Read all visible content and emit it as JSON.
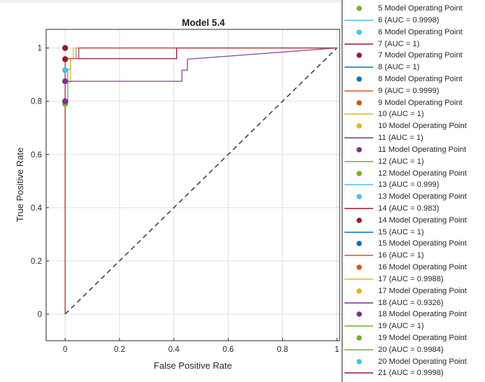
{
  "chart_data": {
    "type": "line",
    "title": "Model 5.4",
    "xlabel": "False Positive Rate",
    "ylabel": "True Positive Rate",
    "xlim": [
      -0.07,
      1.01
    ],
    "ylim": [
      -0.1,
      1.07
    ],
    "xticks": [
      0,
      0.2,
      0.4,
      0.6,
      0.8,
      1
    ],
    "xtick_labels": [
      "0",
      "0.2",
      "0.4",
      "0.6",
      "0.8",
      "1"
    ],
    "yticks": [
      0,
      0.2,
      0.4,
      0.6,
      0.8,
      1
    ],
    "ytick_labels": [
      "0",
      "0.2",
      "0.4",
      "0.6",
      "0.8",
      "1"
    ],
    "grid": true,
    "legend_position": "outside-right",
    "diagonal": {
      "x": [
        0,
        1
      ],
      "y": [
        0,
        1
      ],
      "style": "dashed",
      "color": "#404040"
    },
    "series": [
      {
        "color": "#7aa1c6",
        "x": [
          0,
          0,
          0.01,
          0.01,
          0.02,
          0.02,
          0.04,
          0.04,
          1
        ],
        "y": [
          0,
          0.79,
          0.79,
          0.92,
          0.92,
          0.96,
          0.96,
          1,
          1
        ]
      },
      {
        "color": "#e8c032",
        "x": [
          0,
          0,
          0.02,
          0.02,
          0.03,
          0.03,
          0.45,
          0.45,
          1
        ],
        "y": [
          0,
          0.87,
          0.87,
          0.96,
          0.96,
          1,
          1,
          1,
          1
        ]
      },
      {
        "color": "#8f4fa8",
        "x": [
          0,
          0,
          0.43,
          0.43,
          0.45,
          0.45,
          1
        ],
        "y": [
          0,
          0.875,
          0.875,
          0.917,
          0.917,
          0.958,
          1
        ]
      },
      {
        "color": "#a02040",
        "x": [
          0,
          0,
          0.41,
          0.41,
          1
        ],
        "y": [
          0,
          0.96,
          0.96,
          1,
          1
        ]
      },
      {
        "color": "#c04a4a",
        "x": [
          0,
          0,
          0.02,
          0.02,
          0.05,
          0.05,
          1
        ],
        "y": [
          0,
          0.96,
          0.96,
          0.96,
          0.96,
          1,
          1
        ]
      }
    ],
    "operating_points": [
      {
        "x": 0,
        "y": 0.79,
        "color": "#77ac30"
      },
      {
        "x": 0,
        "y": 0.8,
        "color": "#7e2f8e"
      },
      {
        "x": 0,
        "y": 0.875,
        "color": "#7e2f8e"
      },
      {
        "x": 0,
        "y": 0.917,
        "color": "#4dbeee"
      },
      {
        "x": 0,
        "y": 0.958,
        "color": "#a2142f"
      },
      {
        "x": 0,
        "y": 1.0,
        "color": "#a2142f"
      }
    ],
    "legend_entries": [
      {
        "kind": "marker",
        "color": "#77ac30",
        "label": "5 Model Operating Point"
      },
      {
        "kind": "line",
        "color": "#4dbeee",
        "label": "6 (AUC = 0.9998)"
      },
      {
        "kind": "marker",
        "color": "#4dbeee",
        "label": "6 Model Operating Point"
      },
      {
        "kind": "line",
        "color": "#a2142f",
        "label": "7 (AUC = 1)"
      },
      {
        "kind": "marker",
        "color": "#a2142f",
        "label": "7 Model Operating Point"
      },
      {
        "kind": "line",
        "color": "#0072bd",
        "label": "8 (AUC = 1)"
      },
      {
        "kind": "marker",
        "color": "#0072bd",
        "label": "8 Model Operating Point"
      },
      {
        "kind": "line",
        "color": "#d95319",
        "label": "9 (AUC = 0.9999)"
      },
      {
        "kind": "marker",
        "color": "#d95319",
        "label": "9 Model Operating Point"
      },
      {
        "kind": "line",
        "color": "#edb120",
        "label": "10 (AUC = 1)"
      },
      {
        "kind": "marker",
        "color": "#edb120",
        "label": "10 Model Operating Point"
      },
      {
        "kind": "line",
        "color": "#7e2f8e",
        "label": "11 (AUC = 1)"
      },
      {
        "kind": "marker",
        "color": "#7e2f8e",
        "label": "11 Model Operating Point"
      },
      {
        "kind": "line",
        "color": "#77ac30",
        "label": "12 (AUC = 1)"
      },
      {
        "kind": "marker",
        "color": "#77ac30",
        "label": "12 Model Operating Point"
      },
      {
        "kind": "line",
        "color": "#4dbeee",
        "label": "13 (AUC = 0.999)"
      },
      {
        "kind": "marker",
        "color": "#4dbeee",
        "label": "13 Model Operating Point"
      },
      {
        "kind": "line",
        "color": "#a2142f",
        "label": "14 (AUC = 0.983)"
      },
      {
        "kind": "marker",
        "color": "#a2142f",
        "label": "14 Model Operating Point"
      },
      {
        "kind": "line",
        "color": "#0072bd",
        "label": "15 (AUC = 1)"
      },
      {
        "kind": "marker",
        "color": "#0072bd",
        "label": "15 Model Operating Point"
      },
      {
        "kind": "line",
        "color": "#d95319",
        "label": "16 (AUC = 1)"
      },
      {
        "kind": "marker",
        "color": "#d95319",
        "label": "16 Model Operating Point"
      },
      {
        "kind": "line",
        "color": "#edb120",
        "label": "17 (AUC = 0.9988)"
      },
      {
        "kind": "marker",
        "color": "#edb120",
        "label": "17 Model Operating Point"
      },
      {
        "kind": "line",
        "color": "#7e2f8e",
        "label": "18 (AUC = 0.9326)"
      },
      {
        "kind": "marker",
        "color": "#7e2f8e",
        "label": "18 Model Operating Point"
      },
      {
        "kind": "line",
        "color": "#77ac30",
        "label": "19 (AUC = 1)"
      },
      {
        "kind": "marker",
        "color": "#77ac30",
        "label": "19 Model Operating Point"
      },
      {
        "kind": "line",
        "color": "#77ac30",
        "label": "20 (AUC = 0.9984)"
      },
      {
        "kind": "marker",
        "color": "#4dbeee",
        "label": "20 Model Operating Point"
      },
      {
        "kind": "line",
        "color": "#a2142f",
        "label": "21 (AUC = 0.9998)"
      },
      {
        "kind": "marker",
        "color": "#a2142f",
        "label": ""
      }
    ]
  }
}
